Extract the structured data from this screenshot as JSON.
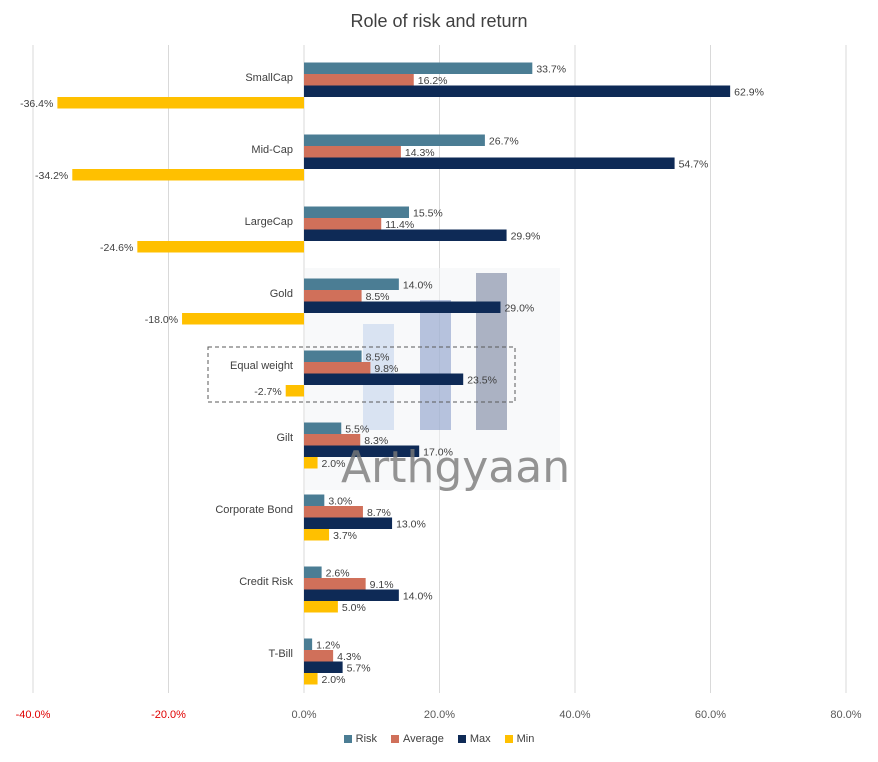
{
  "chart_data": {
    "type": "bar",
    "orientation": "horizontal",
    "title": "Role of risk and return",
    "categories": [
      "SmallCap",
      "Mid-Cap",
      "LargeCap",
      "Gold",
      "Equal weight",
      "Gilt",
      "Corporate Bond",
      "Credit Risk",
      "T-Bill"
    ],
    "series": [
      {
        "name": "Risk",
        "color": "#4B7D94",
        "values": [
          33.7,
          26.7,
          15.5,
          14.0,
          8.5,
          5.5,
          3.0,
          2.6,
          1.2
        ],
        "labels": [
          "33.7%",
          "26.7%",
          "15.5%",
          "14.0%",
          "8.5%",
          "5.5%",
          "3.0%",
          "2.6%",
          "1.2%"
        ]
      },
      {
        "name": "Average",
        "color": "#D0705A",
        "values": [
          16.2,
          14.3,
          11.4,
          8.5,
          9.8,
          8.3,
          8.7,
          9.1,
          4.3
        ],
        "labels": [
          "16.2%",
          "14.3%",
          "11.4%",
          "8.5%",
          "9.8%",
          "8.3%",
          "8.7%",
          "9.1%",
          "4.3%"
        ]
      },
      {
        "name": "Max",
        "color": "#0E2A56",
        "values": [
          62.9,
          54.7,
          29.9,
          29.0,
          23.5,
          17.0,
          13.0,
          14.0,
          5.7
        ],
        "labels": [
          "62.9%",
          "54.7%",
          "29.9%",
          "29.0%",
          "23.5%",
          "17.0%",
          "13.0%",
          "14.0%",
          "5.7%"
        ]
      },
      {
        "name": "Min",
        "color": "#FFC000",
        "values": [
          -36.4,
          -34.2,
          -24.6,
          -18.0,
          -2.7,
          2.0,
          3.7,
          5.0,
          2.0
        ],
        "labels": [
          "-36.4%",
          "-34.2%",
          "-24.6%",
          "-18.0%",
          "-2.7%",
          "2.0%",
          "3.7%",
          "5.0%",
          "2.0%"
        ]
      }
    ],
    "xlim": [
      -40,
      80
    ],
    "xticks": [
      -40,
      -20,
      0,
      20,
      40,
      60,
      80
    ],
    "xtick_labels": [
      "-40.0%",
      "-20.0%",
      "0.0%",
      "20.0%",
      "40.0%",
      "60.0%",
      "80.0%"
    ],
    "negative_label_color": "#E00000",
    "grid": true,
    "legend_position": "bottom",
    "highlighted_category": "Equal weight",
    "watermark": "Arthgyaan"
  }
}
